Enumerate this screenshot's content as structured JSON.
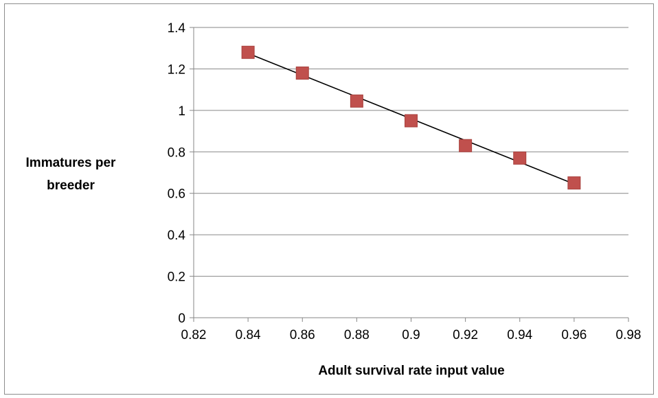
{
  "chart_data": {
    "type": "scatter",
    "title": "",
    "xlabel": "Adult survival rate input value",
    "ylabel_lines": [
      "Immatures per",
      "breeder"
    ],
    "xlim": [
      0.82,
      0.98
    ],
    "ylim": [
      0,
      1.4
    ],
    "x_ticks": [
      0.82,
      0.84,
      0.86,
      0.88,
      0.9,
      0.92,
      0.94,
      0.96,
      0.98
    ],
    "x_tick_labels": [
      "0.82",
      "0.84",
      "0.86",
      "0.88",
      "0.9",
      "0.92",
      "0.94",
      "0.96",
      "0.98"
    ],
    "y_ticks": [
      0,
      0.2,
      0.4,
      0.6,
      0.8,
      1,
      1.2,
      1.4
    ],
    "y_tick_labels": [
      "0",
      "0.2",
      "0.4",
      "0.6",
      "0.8",
      "1",
      "1.2",
      "1.4"
    ],
    "grid": "horizontal",
    "legend": "none",
    "series": [
      {
        "x": [
          0.84,
          0.86,
          0.88,
          0.9,
          0.92,
          0.94,
          0.96
        ],
        "y": [
          1.28,
          1.18,
          1.045,
          0.95,
          0.83,
          0.77,
          0.65
        ],
        "marker": "square",
        "color": "#c0504d"
      }
    ],
    "trendline": {
      "type": "linear",
      "x": [
        0.84,
        0.96
      ],
      "y": [
        1.275,
        0.645
      ],
      "color": "#000000"
    }
  }
}
